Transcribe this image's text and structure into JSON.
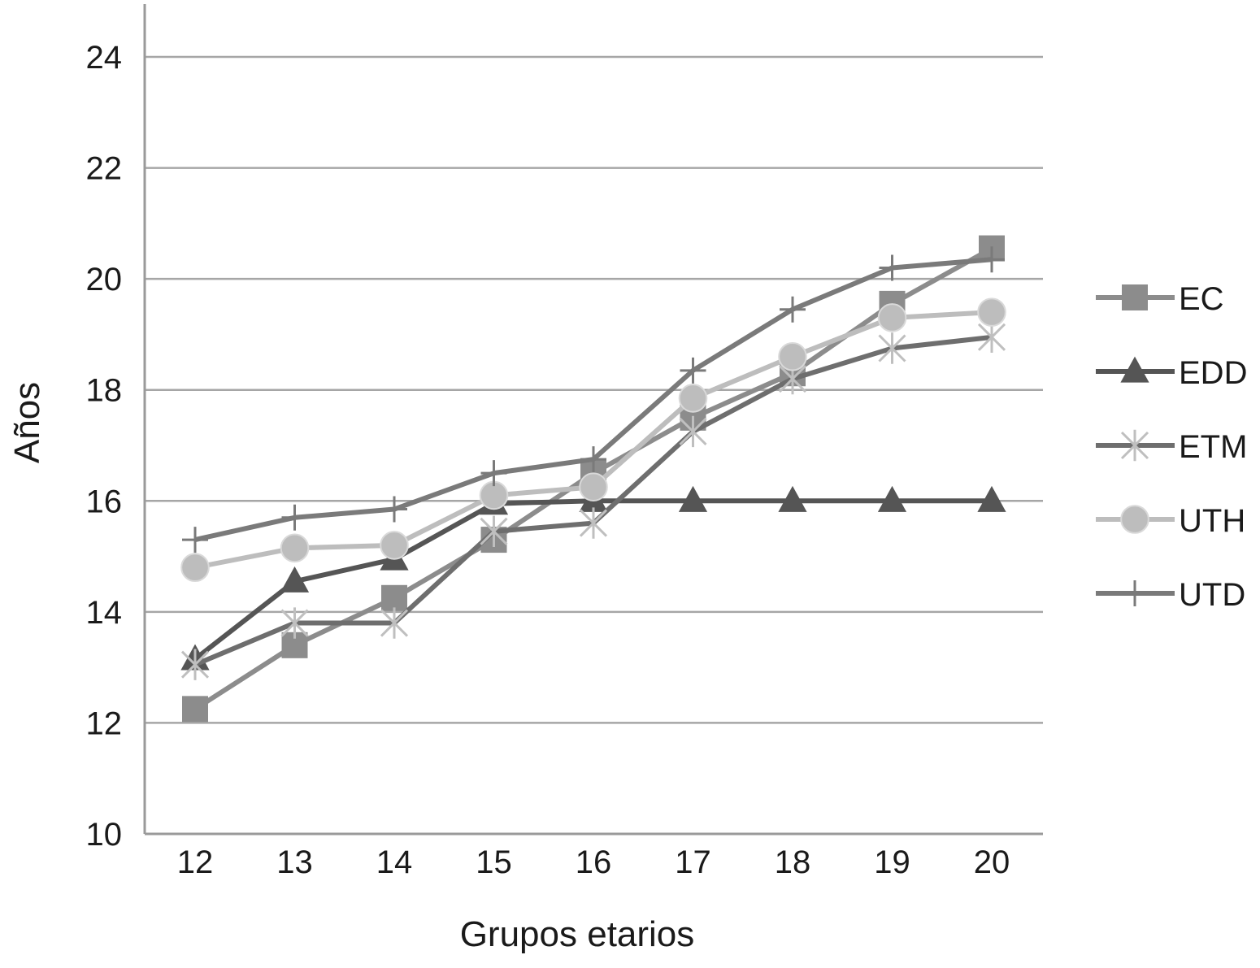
{
  "chart_data": {
    "type": "line",
    "title": "",
    "xlabel": "Grupos etarios",
    "ylabel": "Años",
    "categories": [
      "12",
      "13",
      "14",
      "15",
      "16",
      "17",
      "18",
      "19",
      "20"
    ],
    "ylim": [
      10,
      24
    ],
    "yticks": [
      "10",
      "12",
      "14",
      "16",
      "18",
      "20",
      "22",
      "24"
    ],
    "grid": "horizontal",
    "legend_position": "right",
    "series": [
      {
        "name": "EC",
        "marker": "square",
        "color": "#8c8c8c",
        "values": [
          12.25,
          13.4,
          14.25,
          15.3,
          16.5,
          17.5,
          18.3,
          19.55,
          20.55
        ]
      },
      {
        "name": "EDD",
        "marker": "triangle",
        "color": "#555555",
        "values": [
          13.15,
          14.55,
          14.95,
          15.95,
          16.0,
          16.0,
          16.0,
          16.0,
          16.0
        ]
      },
      {
        "name": "ETM",
        "marker": "asterisk",
        "color": "#6e6e6e",
        "values": [
          13.05,
          13.8,
          13.8,
          15.45,
          15.6,
          17.25,
          18.2,
          18.75,
          18.95
        ]
      },
      {
        "name": "UTH",
        "marker": "circle",
        "color": "#bdbdbd",
        "values": [
          14.8,
          15.15,
          15.2,
          16.1,
          16.25,
          17.85,
          18.6,
          19.3,
          19.4
        ]
      },
      {
        "name": "UTD",
        "marker": "plus",
        "color": "#7a7a7a",
        "values": [
          15.3,
          15.7,
          15.85,
          16.5,
          16.75,
          18.35,
          19.45,
          20.2,
          20.35
        ]
      }
    ]
  }
}
